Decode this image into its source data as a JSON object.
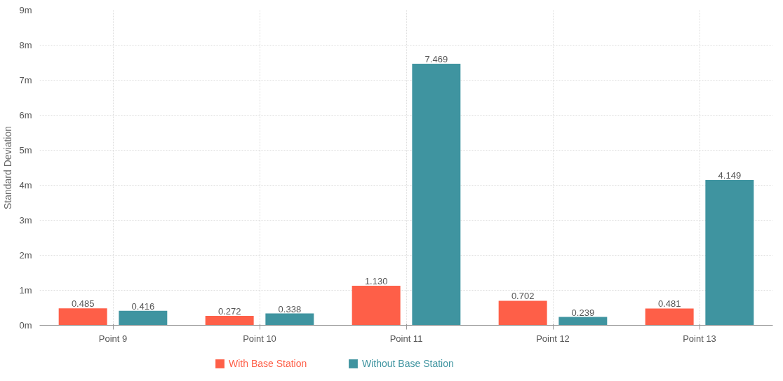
{
  "chart_data": {
    "type": "bar",
    "ylabel": "Standard Deviation",
    "categories": [
      "Point 9",
      "Point 10",
      "Point 11",
      "Point 12",
      "Point 13"
    ],
    "series": [
      {
        "name": "With Base Station",
        "color": "#fe5f48",
        "values": [
          0.485,
          0.272,
          1.13,
          0.702,
          0.481
        ],
        "value_labels": [
          "0.485",
          "0.272",
          "1.130",
          "0.702",
          "0.481"
        ]
      },
      {
        "name": "Without Base Station",
        "color": "#3f94a0",
        "values": [
          0.416,
          0.338,
          7.469,
          0.239,
          4.149
        ],
        "value_labels": [
          "0.416",
          "0.338",
          "7.469",
          "0.239",
          "4.149"
        ]
      }
    ],
    "ylim": [
      0,
      9
    ],
    "yticks": [
      {
        "value": 0,
        "label": "0m"
      },
      {
        "value": 1,
        "label": "1m"
      },
      {
        "value": 2,
        "label": "2m"
      },
      {
        "value": 3,
        "label": "3m"
      },
      {
        "value": 4,
        "label": "4m"
      },
      {
        "value": 5,
        "label": "5m"
      },
      {
        "value": 6,
        "label": "6m"
      },
      {
        "value": 7,
        "label": "7m"
      },
      {
        "value": 8,
        "label": "8m"
      },
      {
        "value": 9,
        "label": "9m"
      }
    ],
    "grid": true,
    "legend": "bottom"
  }
}
